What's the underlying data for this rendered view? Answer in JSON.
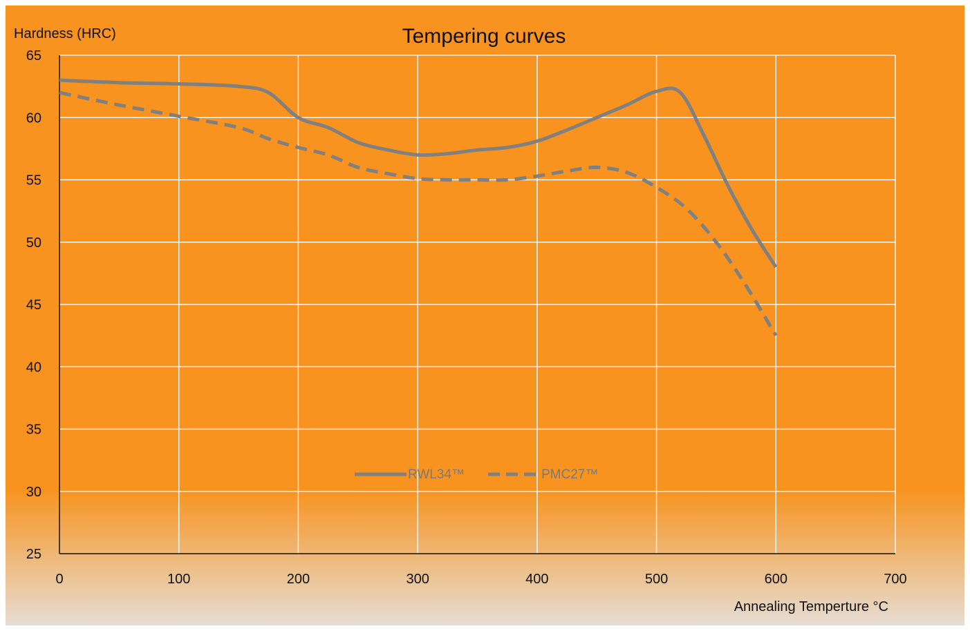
{
  "colors": {
    "background": "#f7931e",
    "background_bottom": "#e6ddd4",
    "gridline": "#f5f5f5",
    "axis": "#111111",
    "series": "#808080"
  },
  "chart_data": {
    "type": "line",
    "title": "Tempering curves",
    "xlabel": "Annealing Temperture °C",
    "ylabel": "Hardness (HRC)",
    "xlim": [
      0,
      700
    ],
    "ylim": [
      25,
      65
    ],
    "xticks": [
      0,
      100,
      200,
      300,
      400,
      500,
      600,
      700
    ],
    "yticks": [
      25,
      30,
      35,
      40,
      45,
      50,
      55,
      60,
      65
    ],
    "grid": true,
    "legend_position": "bottom-center",
    "series": [
      {
        "name": "RWL34™",
        "style": "solid",
        "x": [
          0,
          50,
          100,
          150,
          175,
          200,
          225,
          250,
          275,
          300,
          325,
          350,
          375,
          400,
          425,
          450,
          475,
          500,
          520,
          540,
          560,
          580,
          600
        ],
        "y": [
          63,
          62.8,
          62.7,
          62.5,
          62,
          60,
          59.2,
          58,
          57.4,
          57,
          57.1,
          57.4,
          57.6,
          58.1,
          59,
          60,
          61,
          62.1,
          62,
          58.5,
          54.5,
          51,
          48
        ]
      },
      {
        "name": "PMC27™",
        "style": "dashed",
        "x": [
          0,
          50,
          100,
          150,
          175,
          200,
          225,
          250,
          275,
          300,
          325,
          350,
          375,
          400,
          425,
          450,
          475,
          500,
          525,
          550,
          575,
          600
        ],
        "y": [
          62,
          61,
          60.1,
          59.2,
          58.3,
          57.6,
          57,
          56,
          55.5,
          55.1,
          55,
          55,
          55,
          55.3,
          55.7,
          56,
          55.6,
          54.4,
          52.7,
          50,
          46.5,
          42.5
        ]
      }
    ]
  }
}
